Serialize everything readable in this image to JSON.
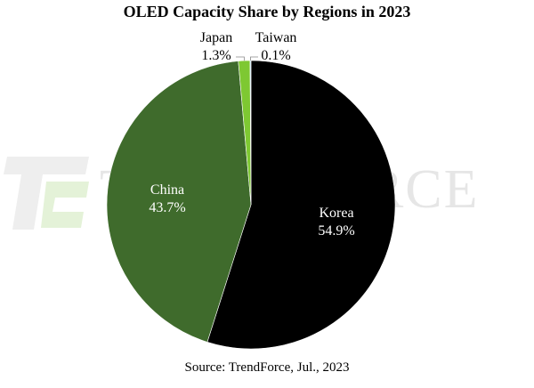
{
  "chart_data": {
    "type": "pie",
    "title": "OLED Capacity Share by Regions in 2023",
    "slices": [
      {
        "name": "Korea",
        "value": 54.9,
        "label": "54.9%",
        "color": "#000000",
        "text_color": "#ffffff"
      },
      {
        "name": "China",
        "value": 43.7,
        "label": "43.7%",
        "color": "#3f6b2c",
        "text_color": "#ffffff"
      },
      {
        "name": "Japan",
        "value": 1.3,
        "label": "1.3%",
        "color": "#7ec832",
        "text_color": "#000000"
      },
      {
        "name": "Taiwan",
        "value": 0.1,
        "label": "0.1%",
        "color": "#a8d5ff",
        "text_color": "#000000"
      }
    ],
    "legend": "none"
  },
  "source": "Source: TrendForce, Jul., 2023",
  "watermark": {
    "text": "TRENDFORCE"
  }
}
